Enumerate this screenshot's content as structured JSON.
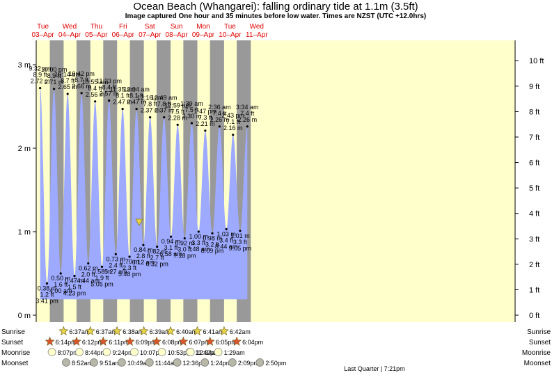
{
  "header": {
    "title": "Ocean Beach (Whangarei): falling  ordinary tide at 1.1m (3.5ft)",
    "subtitle": "Image captured One hour and 35 minutes before low water. Times are NZST (UTC +12.0hrs)"
  },
  "colors": {
    "day_band": "#ffffcc",
    "night_band": "#999999",
    "tide_fill": "#9daaff",
    "day_label": "#e00000",
    "sun_star": "#e8d44a",
    "sunset_star": "#d9552e",
    "moonrise": "#ffffcc",
    "moonset": "#b8b8a8",
    "current_marker": "#e8d44a"
  },
  "chart_data": {
    "type": "area",
    "title": "Ocean Beach (Whangarei): falling  ordinary tide at 1.1m (3.5ft)",
    "ylim_m": [
      0,
      3.2
    ],
    "left_axis_ticks": [
      "0 m",
      "1 m",
      "2 m",
      "3 m"
    ],
    "right_axis_ticks": [
      "0 ft",
      "1 ft",
      "2 ft",
      "3 ft",
      "4 ft",
      "5 ft",
      "6 ft",
      "7 ft",
      "8 ft",
      "9 ft",
      "10 ft"
    ],
    "day_labels": [
      {
        "day": "Tue",
        "date": "03–Apr"
      },
      {
        "day": "Wed",
        "date": "04–Apr"
      },
      {
        "day": "Thu",
        "date": "05–Apr"
      },
      {
        "day": "Fri",
        "date": "06–Apr"
      },
      {
        "day": "Sat",
        "date": "07–Apr"
      },
      {
        "day": "Sun",
        "date": "08–Apr"
      },
      {
        "day": "Mon",
        "date": "09–Apr"
      },
      {
        "day": "Tue",
        "date": "10–Apr"
      },
      {
        "day": "Wed",
        "date": "11–Apr"
      }
    ],
    "tides": [
      {
        "type": "high",
        "time": "9:32 am",
        "ft": "8.9 ft",
        "m": 2.72,
        "label_m": "2.72 m"
      },
      {
        "type": "low",
        "time": "3:41 pm",
        "ft": "1.2 ft",
        "m": 0.38,
        "label_m": "0.38 m"
      },
      {
        "type": "high",
        "time": "10:00 pm",
        "ft": "8.9 ft",
        "m": 2.71,
        "label_m": "2.71 m"
      },
      {
        "type": "low",
        "time": "4:00 am",
        "ft": "1.6 ft",
        "m": 0.5,
        "label_m": "0.50 m"
      },
      {
        "type": "high",
        "time": "10:14 am",
        "ft": "8.7 ft",
        "m": 2.65,
        "label_m": "2.65 m"
      },
      {
        "type": "low",
        "time": "4:23 pm",
        "ft": "1.5 ft",
        "m": 0.47,
        "label_m": "0.47 m"
      },
      {
        "type": "high",
        "time": "10:42 pm",
        "ft": "8.7 ft",
        "m": 2.66,
        "label_m": "2.66 m"
      },
      {
        "type": "low",
        "time": "4:44 am",
        "ft": "2.0 ft",
        "m": 0.62,
        "label_m": "0.62 m"
      },
      {
        "type": "high",
        "time": "10:55 am",
        "ft": "8.4 ft",
        "m": 2.56,
        "label_m": "2.56 m"
      },
      {
        "type": "low",
        "time": "5:05 pm",
        "ft": "1.9 ft",
        "m": 0.58,
        "label_m": "0.58 m"
      },
      {
        "type": "high",
        "time": "11:23 pm",
        "ft": "8.4 ft",
        "m": 2.57,
        "label_m": "2.57 m"
      },
      {
        "type": "low",
        "time": "5:27 am",
        "ft": "2.4 ft",
        "m": 0.73,
        "label_m": "0.73 m"
      },
      {
        "type": "high",
        "time": "11:35 am",
        "ft": "8.1 ft",
        "m": 2.47,
        "label_m": "2.47 m"
      },
      {
        "type": "low",
        "time": "5:48 pm",
        "ft": "2.3 ft",
        "m": 0.7,
        "label_m": "0.70 m"
      },
      {
        "type": "high",
        "time": "12:04 am",
        "ft": "8.1 ft",
        "m": 2.47,
        "label_m": "2.47 m"
      },
      {
        "type": "low",
        "time": "6:12 am",
        "ft": "2.8 ft",
        "m": 0.84,
        "label_m": "0.84 m"
      },
      {
        "type": "high",
        "time": "12:16 pm",
        "ft": "7.8 ft",
        "m": 2.37,
        "label_m": "2.37 m"
      },
      {
        "type": "low",
        "time": "6:32 pm",
        "ft": "2.7 ft",
        "m": 0.82,
        "label_m": "0.82 m"
      },
      {
        "type": "high",
        "time": "12:49 am",
        "ft": "7.8 ft",
        "m": 2.37,
        "label_m": "2.37 m"
      },
      {
        "type": "low",
        "time": "6:58 am",
        "ft": "3.1 ft",
        "m": 0.94,
        "label_m": "0.94 m"
      },
      {
        "type": "high",
        "time": "12:59 pm",
        "ft": "7.5 ft",
        "m": 2.28,
        "label_m": "2.28 m"
      },
      {
        "type": "low",
        "time": "7:18 pm",
        "ft": "3.0 ft",
        "m": 0.92,
        "label_m": "0.92 m"
      },
      {
        "type": "high",
        "time": "1:39 am",
        "ft": "7.5 ft",
        "m": 2.3,
        "label_m": "2.30 m"
      },
      {
        "type": "low",
        "time": "7:48 am",
        "ft": "3.3 ft",
        "m": 1.0,
        "label_m": "1.00 m"
      },
      {
        "type": "high",
        "time": "1:47 pm",
        "ft": "7.3 ft",
        "m": 2.21,
        "label_m": "2.21 m"
      },
      {
        "type": "low",
        "time": "8:09 pm",
        "ft": "3.2 ft",
        "m": 0.98,
        "label_m": "0.98 m"
      },
      {
        "type": "high",
        "time": "2:36 am",
        "ft": "7.4 ft",
        "m": 2.26,
        "label_m": "2.26 m"
      },
      {
        "type": "low",
        "time": "8:44 am",
        "ft": "3.4 ft",
        "m": 1.03,
        "label_m": "1.03 m"
      },
      {
        "type": "high",
        "time": "2:43 pm",
        "ft": "7.1 ft",
        "m": 2.16,
        "label_m": "2.16 m"
      },
      {
        "type": "low",
        "time": "9:05 pm",
        "ft": "3.3 ft",
        "m": 1.01,
        "label_m": "1.01 m"
      },
      {
        "type": "high",
        "time": "3:34 am",
        "ft": "7.4 ft",
        "m": 2.26,
        "label_m": "2.26 m"
      }
    ],
    "current_level_m": 1.1
  },
  "rows": {
    "labels": [
      "Sunrise",
      "Sunset",
      "Moonrise",
      "Moonset"
    ],
    "sunrise": [
      "6:37am",
      "6:37am",
      "6:38am",
      "6:39am",
      "6:40am",
      "6:41am",
      "6:42am"
    ],
    "sunset": [
      "6:14pm",
      "6:12pm",
      "6:11pm",
      "6:09pm",
      "6:08pm",
      "6:07pm",
      "6:05pm",
      "6:04pm"
    ],
    "moonrise": [
      "8:07pm",
      "8:44pm",
      "9:24pm",
      "10:07pm",
      "10:53pm",
      "11:42pm",
      "12:34am",
      "1:29am"
    ],
    "moonset": [
      "8:52am",
      "9:51am",
      "10:49am",
      "11:44am",
      "12:36pm",
      "1:24pm",
      "2:09pm",
      "2:50pm"
    ]
  },
  "footer": {
    "moon_phase": "Last Quarter | 7:21pm"
  }
}
